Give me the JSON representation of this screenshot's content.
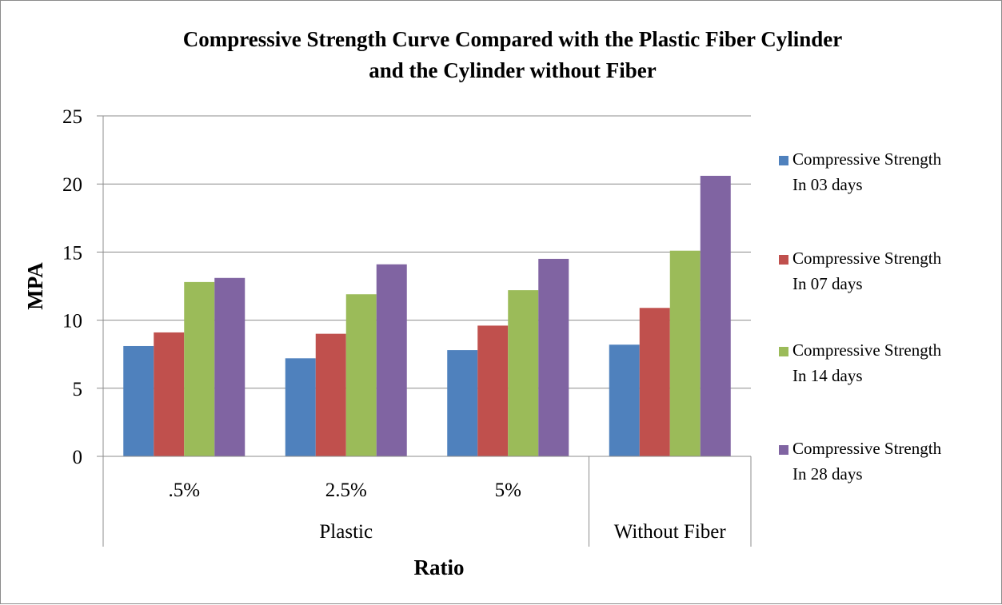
{
  "chart_data": {
    "type": "bar",
    "title_lines": [
      "Compressive Strength Curve Compared with the Plastic Fiber Cylinder",
      "and the Cylinder without Fiber"
    ],
    "xlabel": "Ratio",
    "ylabel": "MPA",
    "ylim": [
      0,
      25
    ],
    "yticks": [
      "0",
      "5",
      "10",
      "15",
      "20",
      "25"
    ],
    "grid": true,
    "legend_position": "right",
    "categories": [
      ".5%",
      "2.5%",
      "5%",
      ""
    ],
    "groups": [
      {
        "label": "Plastic",
        "span": 3
      },
      {
        "label": "Without Fiber",
        "span": 1
      }
    ],
    "series": [
      {
        "name_line1": "Compressive Strength",
        "name_line2": "In 03 days",
        "color": "#4f81bd",
        "values": [
          8.1,
          7.2,
          7.8,
          8.2
        ]
      },
      {
        "name_line1": "Compressive Strength",
        "name_line2": "In 07 days",
        "color": "#c0504d",
        "values": [
          9.1,
          9.0,
          9.6,
          10.9
        ]
      },
      {
        "name_line1": "Compressive Strength",
        "name_line2": "In 14 days",
        "color": "#9bbb59",
        "values": [
          12.8,
          11.9,
          12.2,
          15.1
        ]
      },
      {
        "name_line1": "Compressive Strength",
        "name_line2": "In 28 days",
        "color": "#8064a2",
        "values": [
          13.1,
          14.1,
          14.5,
          20.6
        ]
      }
    ]
  }
}
